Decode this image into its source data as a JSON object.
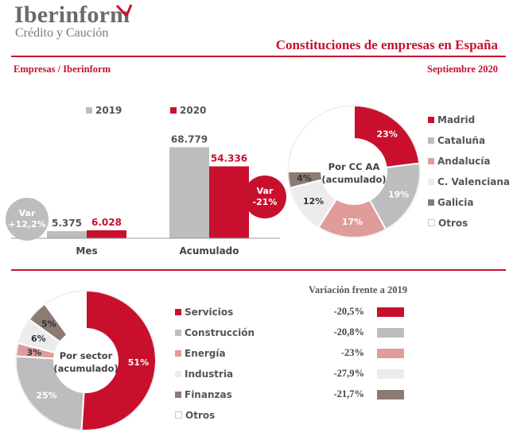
{
  "header": {
    "logo_name": "Iberinform",
    "logo_sub": "Crédito y Caución",
    "title": "Constituciones de empresas en España",
    "subtitle_left": "Empresas / Iberinform",
    "subtitle_right": "Septiembre 2020"
  },
  "colors": {
    "brand_red": "#c8102e",
    "grey": "#bdbdbd",
    "pink": "#e09b9b",
    "light": "#ececec",
    "brown": "#8b7b72",
    "white": "#ffffff"
  },
  "chart_data": [
    {
      "type": "bar",
      "categories": [
        "Mes",
        "Acumulado"
      ],
      "series": [
        {
          "name": "2019",
          "values": [
            5375,
            68779
          ],
          "labels": [
            "5.375",
            "68.779"
          ],
          "color": "#bdbdbd"
        },
        {
          "name": "2020",
          "values": [
            6028,
            54336
          ],
          "labels": [
            "6.028",
            "54.336"
          ],
          "color": "#c8102e"
        }
      ],
      "ylim": [
        0,
        90000
      ],
      "annotations": [
        {
          "category": "Mes",
          "line1": "Var",
          "line2": "+12,2%",
          "color": "#bdbdbd"
        },
        {
          "category": "Acumulado",
          "line1": "Var",
          "line2": "-21%",
          "color": "#c8102e"
        }
      ]
    },
    {
      "type": "pie",
      "center_line1": "Por CC AA",
      "center_line2": "(acumulado)",
      "slices": [
        {
          "label": "Madrid",
          "value": 23,
          "text": "23%",
          "color": "#c8102e",
          "text_color": "#ffffff"
        },
        {
          "label": "Cataluña",
          "value": 19,
          "text": "19%",
          "color": "#bdbdbd",
          "text_color": "#ffffff"
        },
        {
          "label": "Andalucía",
          "value": 17,
          "text": "17%",
          "color": "#e09b9b",
          "text_color": "#ffffff"
        },
        {
          "label": "C. Valenciana",
          "value": 12,
          "text": "12%",
          "color": "#ececec",
          "text_color": "#333333"
        },
        {
          "label": "Galicia",
          "value": 4,
          "text": "4%",
          "color": "#8b7b72",
          "text_color": "#333333"
        },
        {
          "label": "Otros",
          "value": 25,
          "text": "",
          "color": "#ffffff",
          "text_color": "#333333"
        }
      ]
    },
    {
      "type": "pie",
      "center_line1": "Por sector",
      "center_line2": "(acumulado)",
      "slices": [
        {
          "label": "Servicios",
          "value": 51,
          "text": "51%",
          "color": "#c8102e",
          "text_color": "#ffffff"
        },
        {
          "label": "Construcción",
          "value": 25,
          "text": "25%",
          "color": "#bdbdbd",
          "text_color": "#ffffff"
        },
        {
          "label": "Energía",
          "value": 3,
          "text": "3%",
          "color": "#e09b9b",
          "text_color": "#333333"
        },
        {
          "label": "Industria",
          "value": 6,
          "text": "6%",
          "color": "#ececec",
          "text_color": "#333333"
        },
        {
          "label": "Finanzas",
          "value": 5,
          "text": "5%",
          "color": "#8b7b72",
          "text_color": "#333333"
        },
        {
          "label": "Otros",
          "value": 10,
          "text": "",
          "color": "#ffffff",
          "text_color": "#333333"
        }
      ]
    }
  ],
  "variation": {
    "title": "Variación frente a 2019",
    "rows": [
      {
        "sector": "Servicios",
        "value": "-20,5%",
        "color": "#c8102e"
      },
      {
        "sector": "Construcción",
        "value": "-20,8%",
        "color": "#bdbdbd"
      },
      {
        "sector": "Energía",
        "value": "-23%",
        "color": "#e09b9b"
      },
      {
        "sector": "Industria",
        "value": "-27,9%",
        "color": "#ececec"
      },
      {
        "sector": "Finanzas",
        "value": "-21,7%",
        "color": "#8b7b72"
      }
    ]
  }
}
